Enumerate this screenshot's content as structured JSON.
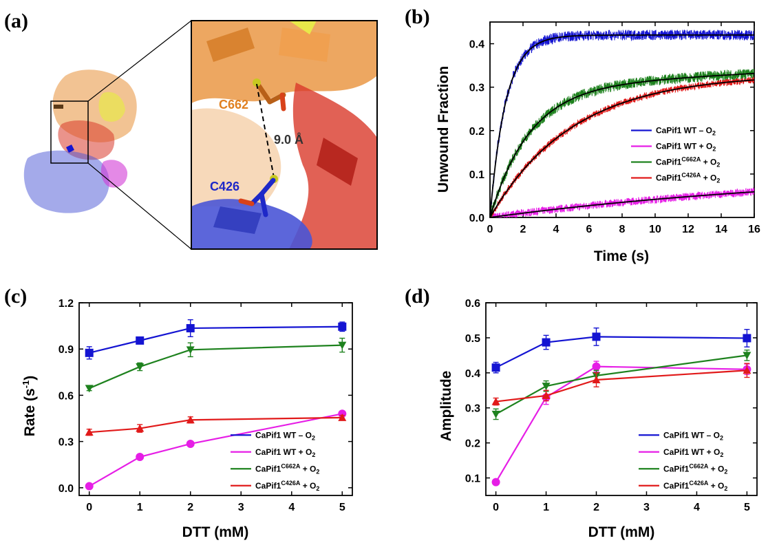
{
  "panel_labels": [
    "(a)",
    "(b)",
    "(c)",
    "(d)"
  ],
  "structure": {
    "labels": {
      "c662": "C662",
      "c426": "C426",
      "distance": "9.0 Å"
    },
    "colors": {
      "orange": "#E8913A",
      "red": "#D93A2B",
      "blue": "#4A55D6",
      "magenta": "#D23BD6",
      "yellow": "#E8E84A"
    }
  },
  "colors": {
    "wt_minus": "#1414D2",
    "wt_plus": "#E61EE6",
    "c662a": "#1E821E",
    "c426a": "#E11A1A",
    "fit": "#000000"
  },
  "legend": {
    "prefix": "CaPif1",
    "items": [
      {
        "main": "CaPif1 WT – O",
        "sup": "",
        "sub": "2",
        "pre_sup": "CaPif1 WT – O"
      },
      {
        "main": "CaPif1 WT + O",
        "sup": "",
        "sub": "2",
        "pre_sup": "CaPif1 WT + O"
      },
      {
        "main": " + O",
        "sup": "C662A",
        "sub": "2",
        "pre_sup": "CaPif1"
      },
      {
        "main": " + O",
        "sup": "C426A",
        "sub": "2",
        "pre_sup": "CaPif1"
      }
    ]
  },
  "chart_data": [
    {
      "panel": "(b)",
      "type": "line",
      "xlabel": "Time (s)",
      "ylabel": "Unwound Fraction",
      "xlim": [
        0,
        16
      ],
      "ylim": [
        0,
        0.45
      ],
      "xticks": [
        0,
        2,
        4,
        6,
        8,
        10,
        12,
        14,
        16
      ],
      "yticks": [
        0.0,
        0.1,
        0.2,
        0.3,
        0.4
      ],
      "ytick_labels": [
        "0.0",
        "0.1",
        "0.2",
        "0.3",
        "0.4"
      ],
      "legend_position": "right",
      "series": [
        {
          "name": "CaPif1 WT – O2",
          "color_key": "wt_minus",
          "amplitude": 0.42,
          "rate": 1.05,
          "noise": 0.012
        },
        {
          "name": "CaPif1 WT + O2",
          "color_key": "wt_plus",
          "amplitude": 0.115,
          "rate": 0.045,
          "noise": 0.009
        },
        {
          "name": "CaPif1C662A + O2",
          "color_key": "c662a",
          "amplitude": 0.3,
          "rate": 0.42,
          "noise": 0.012,
          "linear_tail": 0.002
        },
        {
          "name": "CaPif1C426A + O2",
          "color_key": "c426a",
          "amplitude": 0.33,
          "rate": 0.2,
          "noise": 0.008
        }
      ]
    },
    {
      "panel": "(c)",
      "type": "line",
      "xlabel": "DTT (mM)",
      "ylabel": "Rate (s-1)",
      "xlim": [
        -0.2,
        5.2
      ],
      "ylim": [
        -0.05,
        1.2
      ],
      "xticks": [
        0,
        1,
        2,
        3,
        4,
        5
      ],
      "yticks": [
        0.0,
        0.3,
        0.6,
        0.9,
        1.2
      ],
      "ytick_labels": [
        "0.0",
        "0.3",
        "0.6",
        "0.9",
        "1.2"
      ],
      "legend_position": "bottom-right",
      "x": [
        0,
        1,
        2,
        5
      ],
      "series": [
        {
          "name": "CaPif1 WT – O2",
          "color_key": "wt_minus",
          "marker": "square",
          "values": [
            0.875,
            0.955,
            1.035,
            1.045
          ],
          "errors": [
            0.04,
            0.015,
            0.055,
            0.03
          ]
        },
        {
          "name": "CaPif1 WT + O2",
          "color_key": "wt_plus",
          "marker": "circle",
          "values": [
            0.01,
            0.2,
            0.285,
            0.48
          ],
          "errors": [
            0.01,
            0.01,
            0.01,
            0.01
          ]
        },
        {
          "name": "CaPif1C662A + O2",
          "color_key": "c662a",
          "marker": "triangle-down",
          "values": [
            0.645,
            0.785,
            0.895,
            0.925
          ],
          "errors": [
            0.015,
            0.025,
            0.045,
            0.045
          ]
        },
        {
          "name": "CaPif1C426A + O2",
          "color_key": "c426a",
          "marker": "triangle-up",
          "values": [
            0.36,
            0.385,
            0.44,
            0.455
          ],
          "errors": [
            0.02,
            0.025,
            0.02,
            0.015
          ]
        }
      ]
    },
    {
      "panel": "(d)",
      "type": "line",
      "xlabel": "DTT (mM)",
      "ylabel": "Amplitude",
      "xlim": [
        -0.2,
        5.2
      ],
      "ylim": [
        0.05,
        0.6
      ],
      "xticks": [
        0,
        1,
        2,
        3,
        4,
        5
      ],
      "yticks": [
        0.1,
        0.2,
        0.3,
        0.4,
        0.5,
        0.6
      ],
      "ytick_labels": [
        "0.1",
        "0.2",
        "0.3",
        "0.4",
        "0.5",
        "0.6"
      ],
      "legend_position": "bottom-right",
      "x": [
        0,
        1,
        2,
        5
      ],
      "series": [
        {
          "name": "CaPif1 WT – O2",
          "color_key": "wt_minus",
          "marker": "square",
          "values": [
            0.415,
            0.487,
            0.503,
            0.499
          ],
          "errors": [
            0.015,
            0.02,
            0.025,
            0.025
          ]
        },
        {
          "name": "CaPif1 WT + O2",
          "color_key": "wt_plus",
          "marker": "circle",
          "values": [
            0.088,
            0.33,
            0.418,
            0.41
          ],
          "errors": [
            0.005,
            0.02,
            0.015,
            0.015
          ]
        },
        {
          "name": "CaPif1C662A + O2",
          "color_key": "c662a",
          "marker": "triangle-down",
          "values": [
            0.282,
            0.362,
            0.392,
            0.45
          ],
          "errors": [
            0.015,
            0.015,
            0.015,
            0.015
          ]
        },
        {
          "name": "CaPif1C426A + O2",
          "color_key": "c426a",
          "marker": "triangle-up",
          "values": [
            0.318,
            0.335,
            0.38,
            0.407
          ],
          "errors": [
            0.01,
            0.015,
            0.02,
            0.02
          ]
        }
      ]
    }
  ]
}
